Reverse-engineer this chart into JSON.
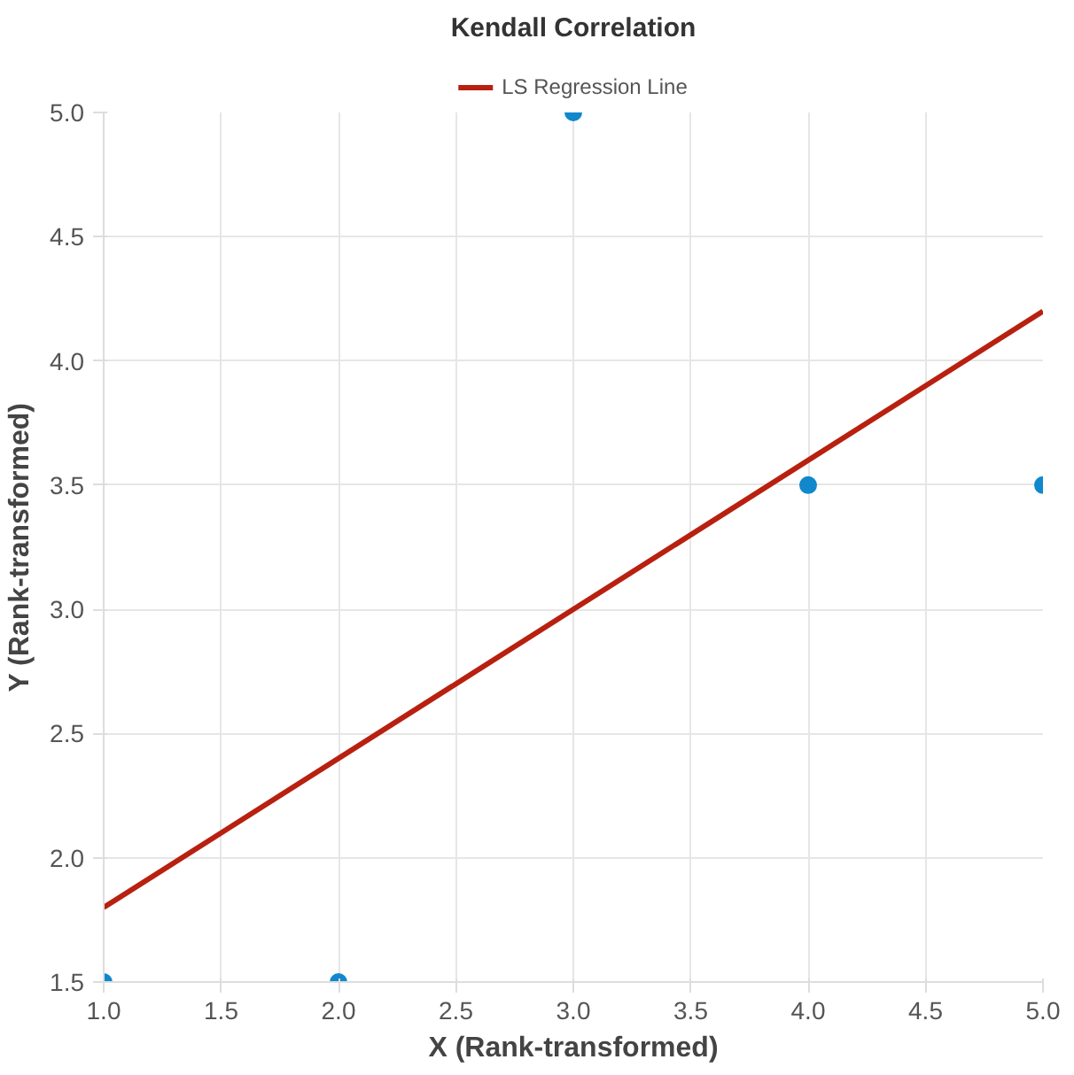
{
  "chart_data": {
    "type": "scatter",
    "title": "Kendall Correlation",
    "xlabel": "X (Rank-transformed)",
    "ylabel": "Y (Rank-transformed)",
    "xlim": [
      1,
      5
    ],
    "ylim": [
      1.5,
      5
    ],
    "xticks": [
      {
        "value": 1,
        "label": "1.0"
      },
      {
        "value": 1.5,
        "label": "1.5"
      },
      {
        "value": 2,
        "label": "2.0"
      },
      {
        "value": 2.5,
        "label": "2.5"
      },
      {
        "value": 3,
        "label": "3.0"
      },
      {
        "value": 3.5,
        "label": "3.5"
      },
      {
        "value": 4,
        "label": "4.0"
      },
      {
        "value": 4.5,
        "label": "4.5"
      },
      {
        "value": 5,
        "label": "5.0"
      }
    ],
    "yticks": [
      {
        "value": 1.5,
        "label": "1.5"
      },
      {
        "value": 2,
        "label": "2.0"
      },
      {
        "value": 2.5,
        "label": "2.5"
      },
      {
        "value": 3,
        "label": "3.0"
      },
      {
        "value": 3.5,
        "label": "3.5"
      },
      {
        "value": 4,
        "label": "4.0"
      },
      {
        "value": 4.5,
        "label": "4.5"
      },
      {
        "value": 5,
        "label": "5.0"
      }
    ],
    "grid": true,
    "legend": "top",
    "series": [
      {
        "color": "#1188cc",
        "marker": "circle",
        "x": [
          1,
          2,
          3,
          4,
          5
        ],
        "values": [
          1.5,
          1.5,
          5,
          3.5,
          3.5
        ]
      },
      {
        "type": "line",
        "name": "LS Regression Line",
        "color": "#b8200f",
        "marker": "none",
        "line_style": "solid",
        "x": [
          1,
          5
        ],
        "values": [
          1.8,
          4.2
        ]
      }
    ]
  }
}
